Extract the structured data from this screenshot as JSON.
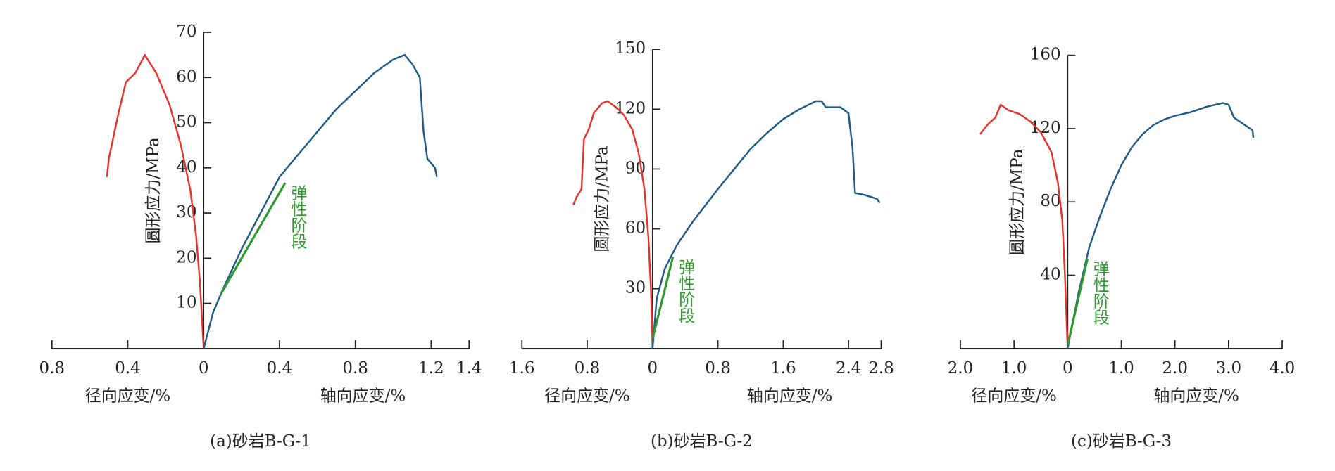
{
  "chart_data": [
    {
      "type": "line",
      "title": "(a)砂岩B-G-1",
      "ylabel": "圆形应力/MPa",
      "xlabel_radial": "径向应变/%",
      "xlabel_axial": "轴向应变/%",
      "annotation": "弹性阶段",
      "xlim": [
        -0.8,
        1.4
      ],
      "ylim": [
        0,
        70
      ],
      "xticks": [
        {
          "value": -0.8,
          "label": "0.8"
        },
        {
          "value": -0.4,
          "label": "0.4"
        },
        0,
        0.4,
        0.8,
        1.2,
        1.4
      ],
      "yticks": [
        10,
        20,
        30,
        40,
        50,
        60,
        70
      ],
      "series": [
        {
          "color": "#e8312a",
          "x": [
            -0.51,
            -0.5,
            -0.45,
            -0.41,
            -0.36,
            -0.31,
            -0.25,
            -0.18,
            -0.12,
            -0.07,
            -0.04,
            -0.02,
            0
          ],
          "values": [
            38,
            42,
            52,
            59,
            61,
            65,
            61,
            54,
            45,
            35,
            25,
            15,
            0
          ]
        },
        {
          "color": "#1f5a85",
          "x": [
            0,
            0.05,
            0.1,
            0.2,
            0.3,
            0.4,
            0.5,
            0.6,
            0.7,
            0.8,
            0.9,
            1.0,
            1.06,
            1.1,
            1.14,
            1.16,
            1.18,
            1.22,
            1.23
          ],
          "values": [
            0,
            8,
            13,
            22,
            30,
            38,
            43,
            48,
            53,
            57,
            61,
            64,
            65,
            63,
            60,
            48,
            42,
            40,
            38
          ]
        },
        {
          "color": "#2e9a2e",
          "x": [
            0.09,
            0.43
          ],
          "values": [
            12,
            36.7
          ]
        }
      ]
    },
    {
      "type": "line",
      "title": "(b)砂岩B-G-2",
      "ylabel": "圆形应力/MPa",
      "xlabel_radial": "径向应变/%",
      "xlabel_axial": "轴向应变/%",
      "annotation": "弹性阶段",
      "xlim": [
        -1.6,
        2.8
      ],
      "ylim": [
        0,
        150
      ],
      "xticks": [
        {
          "value": -1.6,
          "label": "1.6"
        },
        {
          "value": -0.8,
          "label": "0.8"
        },
        0,
        0.8,
        1.6,
        2.4,
        2.8
      ],
      "yticks": [
        30,
        60,
        90,
        120,
        150
      ],
      "series": [
        {
          "color": "#e8312a",
          "x": [
            -0.97,
            -0.93,
            -0.87,
            -0.84,
            -0.78,
            -0.72,
            -0.62,
            -0.55,
            -0.45,
            -0.35,
            -0.25,
            -0.17,
            -0.1,
            -0.05,
            -0.02,
            0
          ],
          "values": [
            72,
            76,
            80,
            105,
            110,
            118,
            123,
            124,
            121,
            117,
            110,
            98,
            80,
            55,
            30,
            0
          ]
        },
        {
          "color": "#1f5a85",
          "x": [
            0,
            0.05,
            0.15,
            0.3,
            0.5,
            0.8,
            1.0,
            1.2,
            1.4,
            1.6,
            1.8,
            2.0,
            2.07,
            2.12,
            2.3,
            2.4,
            2.45,
            2.48,
            2.6,
            2.75,
            2.78
          ],
          "values": [
            0,
            25,
            40,
            52,
            64,
            80,
            90,
            100,
            108,
            115,
            120,
            124,
            124,
            121,
            121,
            118,
            100,
            78,
            77,
            75,
            73
          ]
        },
        {
          "color": "#2e9a2e",
          "x": [
            0,
            0.25
          ],
          "values": [
            5,
            46
          ]
        }
      ]
    },
    {
      "type": "line",
      "title": "(c)砂岩B-G-3",
      "ylabel": "圆形应力/MPa",
      "xlabel_radial": "径向应变/%",
      "xlabel_axial": "轴向应变/%",
      "annotation": "弹性阶段",
      "xlim": [
        -2,
        4
      ],
      "ylim": [
        0,
        160
      ],
      "xticks": [
        {
          "value": -2,
          "label": "2.0"
        },
        {
          "value": -1,
          "label": "1.0"
        },
        0,
        {
          "value": 1,
          "label": "1.0"
        },
        {
          "value": 2,
          "label": "2.0"
        },
        {
          "value": 3,
          "label": "3.0"
        },
        {
          "value": 4,
          "label": "4.0"
        }
      ],
      "yticks": [
        40,
        80,
        120,
        160
      ],
      "series": [
        {
          "color": "#e8312a",
          "x": [
            -1.63,
            -1.5,
            -1.35,
            -1.25,
            -1.1,
            -0.9,
            -0.7,
            -0.5,
            -0.3,
            -0.18,
            -0.1,
            -0.05,
            0
          ],
          "values": [
            117,
            122,
            126,
            133,
            130,
            128,
            124,
            118,
            107,
            90,
            70,
            40,
            0
          ]
        },
        {
          "color": "#1f5a85",
          "x": [
            0,
            0.2,
            0.4,
            0.6,
            0.8,
            1.0,
            1.2,
            1.4,
            1.6,
            1.8,
            2.0,
            2.3,
            2.6,
            2.9,
            3.0,
            3.1,
            3.3,
            3.45,
            3.46
          ],
          "values": [
            0,
            30,
            55,
            72,
            87,
            100,
            110,
            117,
            122,
            125,
            127,
            129,
            132,
            134,
            133,
            126,
            122,
            119,
            115
          ]
        },
        {
          "color": "#2e9a2e",
          "x": [
            0,
            0.37
          ],
          "values": [
            2,
            49
          ]
        }
      ]
    }
  ]
}
